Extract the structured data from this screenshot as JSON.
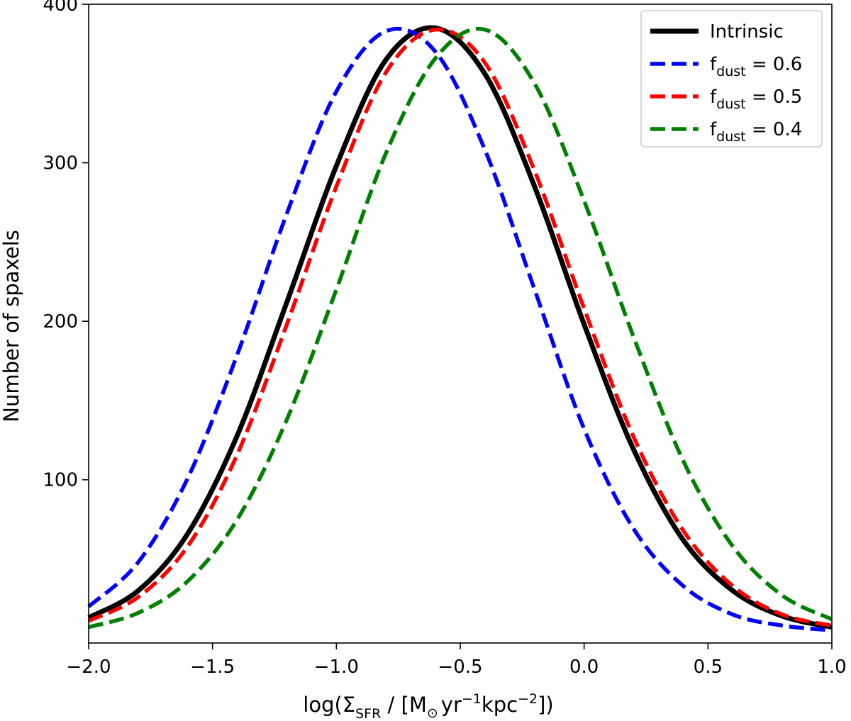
{
  "chart_data": {
    "type": "line",
    "title": "",
    "xlabel": {
      "prefix": "log(Σ",
      "sub": "SFR",
      "middle": " / [M",
      "sun": "⊙",
      "unit1": "yr",
      "exp1": "−1",
      "unit2": "kpc",
      "exp2": "−2",
      "suffix": "])"
    },
    "ylabel": "Number of spaxels",
    "xlim": [
      -2.0,
      1.0
    ],
    "ylim": [
      -3,
      400
    ],
    "xticks": [
      -2.0,
      -1.5,
      -1.0,
      -0.5,
      0.0,
      0.5,
      1.0
    ],
    "xtick_labels": [
      "−2.0",
      "−1.5",
      "−1.0",
      "−0.5",
      "0.0",
      "0.5",
      "1.0"
    ],
    "yticks": [
      100,
      200,
      300,
      400
    ],
    "ytick_labels": [
      "100",
      "200",
      "300",
      "400"
    ],
    "legend_position": "top-right",
    "series": [
      {
        "name": "Intrinsic",
        "label_main": "Intrinsic",
        "label_sub": "",
        "label_tail": "",
        "color": "#000000",
        "style": "solid",
        "x": [
          -2.0,
          -1.8,
          -1.6,
          -1.4,
          -1.2,
          -1.0,
          -0.8,
          -0.6,
          -0.4,
          -0.2,
          0.0,
          0.2,
          0.4,
          0.6,
          0.8,
          1.0
        ],
        "y": [
          13,
          30,
          66,
          128,
          212,
          298,
          365,
          385,
          356,
          285,
          198,
          119,
          62,
          30,
          14,
          7
        ]
      },
      {
        "name": "f_dust = 0.6",
        "label_main": "f",
        "label_sub": "dust",
        "label_tail": " = 0.6",
        "color": "#0000ff",
        "style": "dashed",
        "x": [
          -2.0,
          -1.8,
          -1.6,
          -1.4,
          -1.2,
          -1.0,
          -0.8,
          -0.6,
          -0.4,
          -0.2,
          0.0,
          0.2,
          0.4,
          0.6,
          0.8,
          1.0
        ],
        "y": [
          20,
          48,
          101,
          179,
          268,
          345,
          383,
          370,
          308,
          220,
          132,
          69,
          33,
          15,
          8,
          5
        ]
      },
      {
        "name": "f_dust = 0.5",
        "label_main": "f",
        "label_sub": "dust",
        "label_tail": " = 0.5",
        "color": "#ff0000",
        "style": "dashed",
        "x": [
          -2.0,
          -1.8,
          -1.6,
          -1.4,
          -1.2,
          -1.0,
          -0.8,
          -0.6,
          -0.4,
          -0.2,
          0.0,
          0.2,
          0.4,
          0.6,
          0.8,
          1.0
        ],
        "y": [
          11,
          26,
          58,
          116,
          198,
          285,
          357,
          384,
          363,
          295,
          208,
          127,
          68,
          33,
          15,
          8
        ]
      },
      {
        "name": "f_dust = 0.4",
        "label_main": "f",
        "label_sub": "dust",
        "label_tail": " = 0.4",
        "color": "#008000",
        "style": "dashed",
        "x": [
          -2.0,
          -1.8,
          -1.6,
          -1.4,
          -1.2,
          -1.0,
          -0.8,
          -0.6,
          -0.4,
          -0.2,
          0.0,
          0.2,
          0.4,
          0.6,
          0.8,
          1.0
        ],
        "y": [
          7,
          16,
          36,
          75,
          138,
          220,
          306,
          366,
          384,
          350,
          276,
          190,
          112,
          58,
          27,
          12
        ]
      }
    ]
  }
}
